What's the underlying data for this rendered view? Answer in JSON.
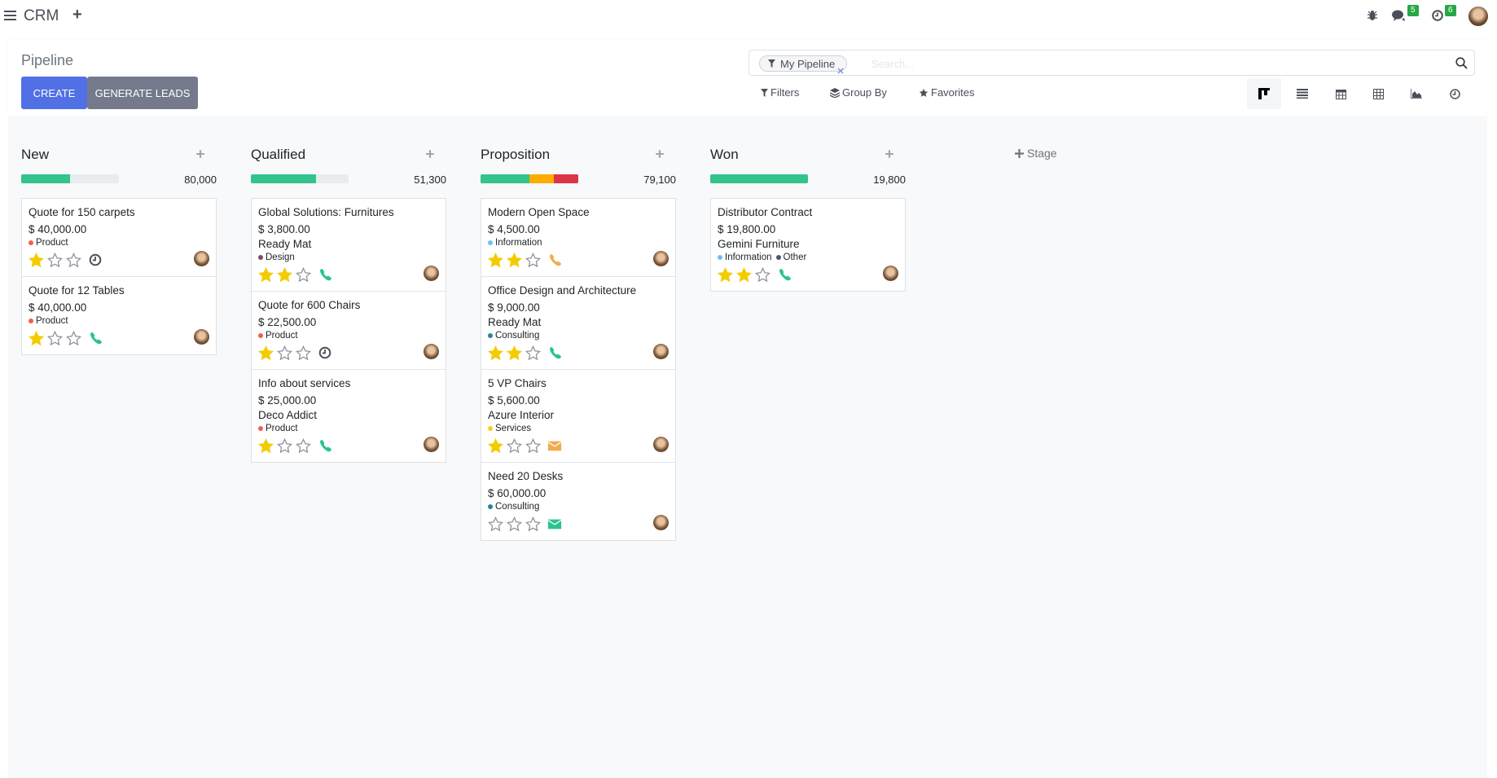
{
  "topbar": {
    "app_name": "CRM",
    "messages_count": "5",
    "activities_count": "6"
  },
  "control_panel": {
    "title": "Pipeline",
    "create_label": "CREATE",
    "generate_leads_label": "GENERATE LEADS",
    "search": {
      "facet": "My Pipeline",
      "placeholder": "Search..."
    },
    "filters_label": "Filters",
    "group_by_label": "Group By",
    "favorites_label": "Favorites",
    "views": [
      "kanban",
      "list",
      "calendar",
      "pivot",
      "graph",
      "activity"
    ],
    "active_view": "kanban"
  },
  "add_stage_label": "Stage",
  "colors": {
    "green": "#33c38d",
    "orange": "#ffac00",
    "red": "#dc3545",
    "star": "#f3cc00",
    "phone_green": "#2cc38d",
    "phone_orange": "#f0ad4e",
    "clock": "#4a4f59"
  },
  "columns": [
    {
      "title": "New",
      "total": "80,000",
      "progress": [
        {
          "color": "#33c38d",
          "pct": 50
        }
      ],
      "cards": [
        {
          "title": "Quote for 150 carpets",
          "amount": "$ 40,000.00",
          "tags": [
            {
              "label": "Product",
              "color": "#f06050"
            }
          ],
          "stars": 1,
          "activity": {
            "icon": "clock",
            "color": "#4a4f59"
          }
        },
        {
          "title": "Quote for 12 Tables",
          "amount": "$ 40,000.00",
          "tags": [
            {
              "label": "Product",
              "color": "#f06050"
            }
          ],
          "stars": 1,
          "activity": {
            "icon": "phone",
            "color": "#2cc38d"
          }
        }
      ]
    },
    {
      "title": "Qualified",
      "total": "51,300",
      "progress": [
        {
          "color": "#33c38d",
          "pct": 67
        }
      ],
      "cards": [
        {
          "title": "Global Solutions: Furnitures",
          "amount": "$ 3,800.00",
          "company": "Ready Mat",
          "tags": [
            {
              "label": "Design",
              "color": "#814968"
            }
          ],
          "stars": 2,
          "activity": {
            "icon": "phone",
            "color": "#2cc38d"
          }
        },
        {
          "title": "Quote for 600 Chairs",
          "amount": "$ 22,500.00",
          "tags": [
            {
              "label": "Product",
              "color": "#f06050"
            }
          ],
          "stars": 1,
          "activity": {
            "icon": "clock",
            "color": "#4a4f59"
          }
        },
        {
          "title": "Info about services",
          "amount": "$ 25,000.00",
          "company": "Deco Addict",
          "tags": [
            {
              "label": "Product",
              "color": "#f06050"
            }
          ],
          "stars": 1,
          "activity": {
            "icon": "phone",
            "color": "#2cc38d"
          }
        }
      ]
    },
    {
      "title": "Proposition",
      "total": "79,100",
      "progress": [
        {
          "color": "#33c38d",
          "pct": 50
        },
        {
          "color": "#ffac00",
          "pct": 25
        },
        {
          "color": "#dc3545",
          "pct": 25
        }
      ],
      "cards": [
        {
          "title": "Modern Open Space",
          "amount": "$ 4,500.00",
          "tags": [
            {
              "label": "Information",
              "color": "#6cc1ed"
            }
          ],
          "stars": 2,
          "activity": {
            "icon": "phone",
            "color": "#f0ad4e"
          }
        },
        {
          "title": "Office Design and Architecture",
          "amount": "$ 9,000.00",
          "company": "Ready Mat",
          "tags": [
            {
              "label": "Consulting",
              "color": "#2c8397"
            }
          ],
          "stars": 2,
          "activity": {
            "icon": "phone",
            "color": "#2cc38d"
          }
        },
        {
          "title": "5 VP Chairs",
          "amount": "$ 5,600.00",
          "company": "Azure Interior",
          "tags": [
            {
              "label": "Services",
              "color": "#f7cd1f"
            }
          ],
          "stars": 1,
          "activity": {
            "icon": "envelope",
            "color": "#f0ad4e"
          }
        },
        {
          "title": "Need 20 Desks",
          "amount": "$ 60,000.00",
          "tags": [
            {
              "label": "Consulting",
              "color": "#2c8397"
            }
          ],
          "stars": 0,
          "activity": {
            "icon": "envelope",
            "color": "#2cc38d"
          }
        }
      ]
    },
    {
      "title": "Won",
      "total": "19,800",
      "progress": [
        {
          "color": "#33c38d",
          "pct": 100
        }
      ],
      "cards": [
        {
          "title": "Distributor Contract",
          "amount": "$ 19,800.00",
          "company": "Gemini Furniture",
          "tags": [
            {
              "label": "Information",
              "color": "#6cc1ed"
            },
            {
              "label": "Other",
              "color": "#475577"
            }
          ],
          "stars": 2,
          "activity": {
            "icon": "phone",
            "color": "#2cc38d"
          }
        }
      ]
    }
  ]
}
